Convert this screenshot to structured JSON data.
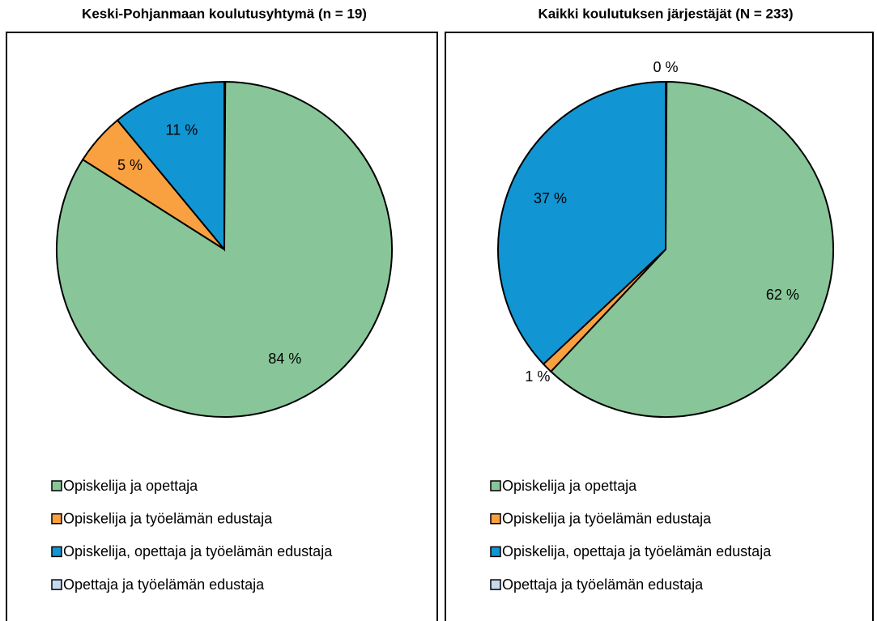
{
  "chart_data": [
    {
      "type": "pie",
      "title": "Keski-Pohjanmaan koulutusyhtymä (n = 19)",
      "categories": [
        "Opiskelija ja opettaja",
        "Opiskelija ja työelämän edustaja",
        "Opiskelija, opettaja ja työelämän edustaja",
        "Opettaja ja työelämän edustaja"
      ],
      "values": [
        84,
        5,
        11,
        0
      ],
      "value_labels": [
        "84 %",
        "5 %",
        "11 %",
        null
      ],
      "colors": [
        "#88c69a",
        "#f9a040",
        "#1295d3",
        "#c5d9ef"
      ]
    },
    {
      "type": "pie",
      "title": "Kaikki koulutuksen järjestäjät (N = 233)",
      "categories": [
        "Opiskelija ja opettaja",
        "Opiskelija ja työelämän edustaja",
        "Opiskelija, opettaja ja työelämän edustaja",
        "Opettaja ja työelämän edustaja"
      ],
      "values": [
        62,
        1,
        37,
        0
      ],
      "value_labels": [
        "62 %",
        "1 %",
        "37 %",
        "0 %"
      ],
      "colors": [
        "#88c69a",
        "#f9a040",
        "#1295d3",
        "#c5d9ef"
      ]
    }
  ]
}
